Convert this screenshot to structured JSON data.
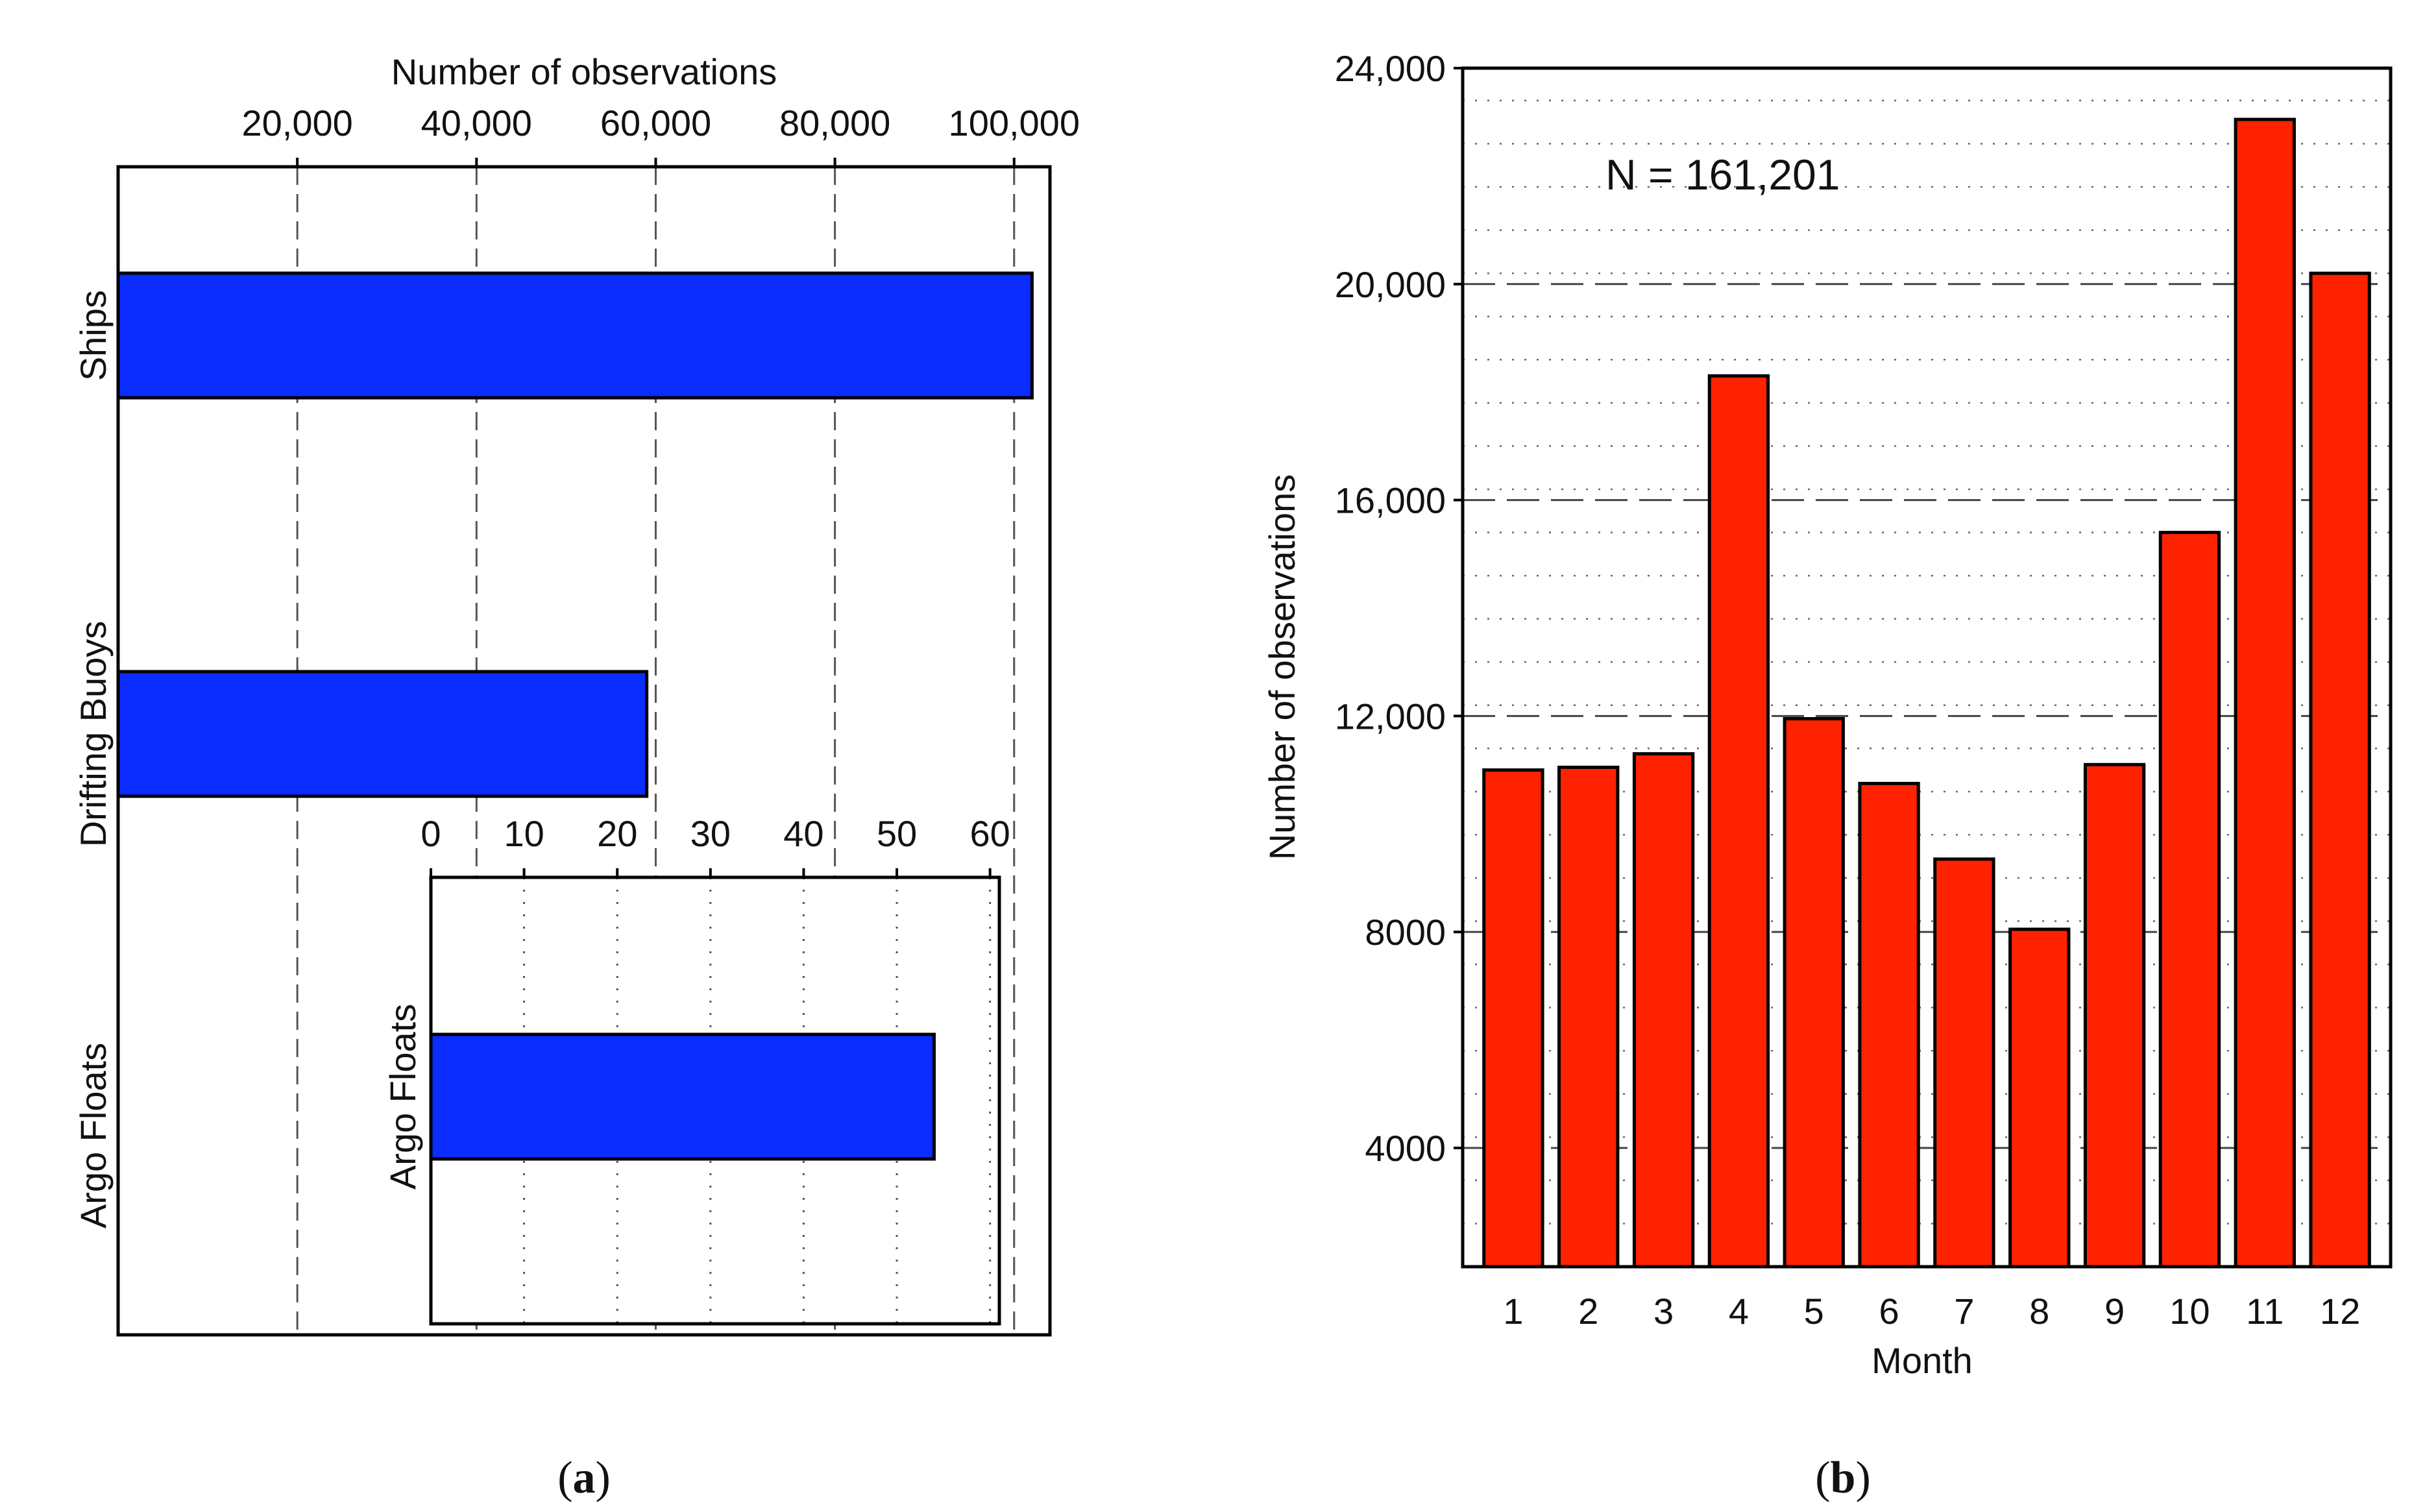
{
  "chart_data": [
    {
      "type": "bar",
      "orientation": "horizontal",
      "panel_label": "a",
      "xlabel": "Number of observations",
      "categories": [
        "Ships",
        "Drifting Buoys",
        "Argo Floats"
      ],
      "values": [
        102000,
        59000,
        54
      ],
      "xlim": [
        0,
        104000
      ],
      "xticks": [
        20000,
        40000,
        60000,
        80000,
        100000
      ],
      "xtick_labels": [
        "20,000",
        "40,000",
        "60,000",
        "80,000",
        "100,000"
      ],
      "grid": "x-dashed",
      "bar_color": "#0a2cff",
      "inset": {
        "type": "bar",
        "orientation": "horizontal",
        "categories": [
          "Argo Floats"
        ],
        "values": [
          54
        ],
        "xlim": [
          0,
          61
        ],
        "xticks": [
          0,
          10,
          20,
          30,
          40,
          50,
          60
        ],
        "xtick_labels": [
          "0",
          "10",
          "20",
          "30",
          "40",
          "50",
          "60"
        ],
        "grid": "x-dotted"
      }
    },
    {
      "type": "bar",
      "orientation": "vertical",
      "panel_label": "b",
      "xlabel": "Month",
      "ylabel": "Number of observations",
      "annotation": "N = 161,201",
      "categories": [
        "1",
        "2",
        "3",
        "4",
        "5",
        "6",
        "7",
        "8",
        "9",
        "10",
        "11",
        "12"
      ],
      "values": [
        11000,
        11050,
        11300,
        18300,
        11950,
        10750,
        9350,
        8050,
        11100,
        15400,
        23050,
        20200
      ],
      "ylim": [
        1800,
        24000
      ],
      "yticks": [
        4000,
        8000,
        12000,
        16000,
        20000,
        24000
      ],
      "ytick_labels": [
        "4000",
        "8000",
        "12,000",
        "16,000",
        "20,000",
        "24,000"
      ],
      "minor_grid_step": 800,
      "grid": "y-dashed-major-dotted-minor",
      "bar_color": "#ff2200"
    }
  ]
}
